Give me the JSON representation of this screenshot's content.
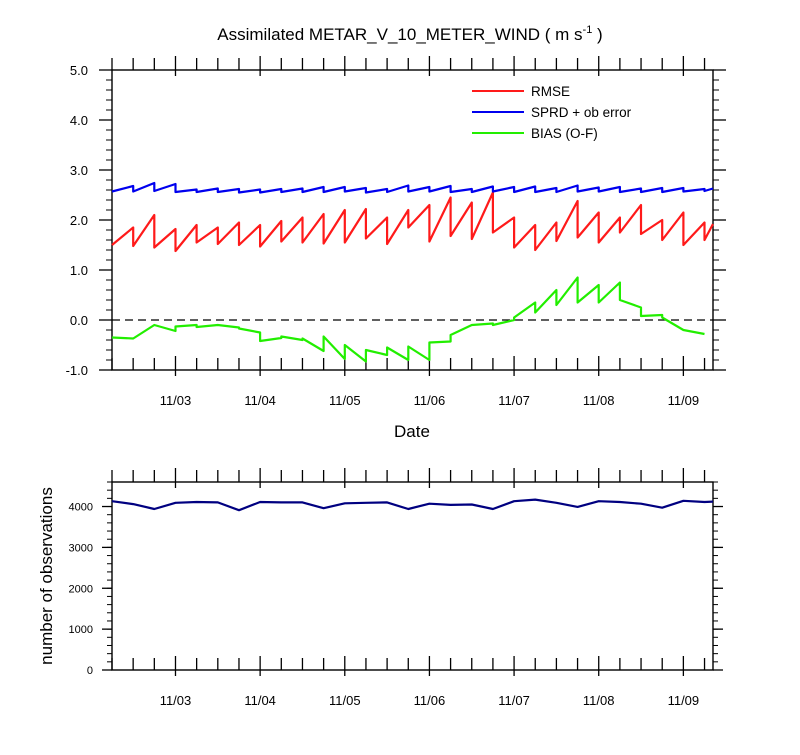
{
  "title_main": "Assimilated METAR_V_10_METER_WIND ( m s",
  "title_sup": "-1",
  "title_end": " )",
  "colors": {
    "rmse": "#ff1a1a",
    "sprd": "#0000ee",
    "bias": "#22ee00",
    "obs": "#000080"
  },
  "chart_data": [
    {
      "type": "line",
      "xlabel": "Date",
      "ylabel": "",
      "ylim": [
        -1,
        5
      ],
      "xlim": [
        2.25,
        9.35
      ],
      "x_ticks": [
        "11/03",
        "11/04",
        "11/05",
        "11/06",
        "11/07",
        "11/08",
        "11/09"
      ],
      "y_ticks": [
        "-1.0",
        "0.0",
        "1.0",
        "2.0",
        "3.0",
        "4.0",
        "5.0"
      ],
      "reference_line": 0,
      "legend_position": "top-right",
      "series": [
        {
          "name": "RMSE",
          "points": [
            [
              2.25,
              1.5
            ],
            [
              2.5,
              1.85
            ],
            [
              2.5,
              1.48
            ],
            [
              2.75,
              2.1
            ],
            [
              2.75,
              1.45
            ],
            [
              3.0,
              1.82
            ],
            [
              3.0,
              1.38
            ],
            [
              3.25,
              1.9
            ],
            [
              3.25,
              1.55
            ],
            [
              3.5,
              1.85
            ],
            [
              3.5,
              1.52
            ],
            [
              3.75,
              1.95
            ],
            [
              3.75,
              1.5
            ],
            [
              4.0,
              1.9
            ],
            [
              4.0,
              1.47
            ],
            [
              4.25,
              1.98
            ],
            [
              4.25,
              1.57
            ],
            [
              4.5,
              2.05
            ],
            [
              4.5,
              1.55
            ],
            [
              4.75,
              2.12
            ],
            [
              4.75,
              1.53
            ],
            [
              5.0,
              2.2
            ],
            [
              5.0,
              1.55
            ],
            [
              5.25,
              2.22
            ],
            [
              5.25,
              1.63
            ],
            [
              5.5,
              2.05
            ],
            [
              5.5,
              1.52
            ],
            [
              5.75,
              2.2
            ],
            [
              5.75,
              1.85
            ],
            [
              6.0,
              2.3
            ],
            [
              6.0,
              1.57
            ],
            [
              6.25,
              2.45
            ],
            [
              6.25,
              1.68
            ],
            [
              6.5,
              2.35
            ],
            [
              6.5,
              1.62
            ],
            [
              6.75,
              2.55
            ],
            [
              6.75,
              1.75
            ],
            [
              7.0,
              2.05
            ],
            [
              7.0,
              1.45
            ],
            [
              7.25,
              1.9
            ],
            [
              7.25,
              1.4
            ],
            [
              7.5,
              1.95
            ],
            [
              7.5,
              1.58
            ],
            [
              7.75,
              2.38
            ],
            [
              7.75,
              1.65
            ],
            [
              8.0,
              2.15
            ],
            [
              8.0,
              1.55
            ],
            [
              8.25,
              2.05
            ],
            [
              8.25,
              1.75
            ],
            [
              8.5,
              2.3
            ],
            [
              8.5,
              1.72
            ],
            [
              8.75,
              2.0
            ],
            [
              8.75,
              1.6
            ],
            [
              9.0,
              2.15
            ],
            [
              9.0,
              1.5
            ],
            [
              9.25,
              1.95
            ],
            [
              9.25,
              1.6
            ],
            [
              9.35,
              1.92
            ]
          ]
        },
        {
          "name": "SPRD + ob error",
          "points": [
            [
              2.25,
              2.57
            ],
            [
              2.5,
              2.68
            ],
            [
              2.5,
              2.57
            ],
            [
              2.75,
              2.74
            ],
            [
              2.75,
              2.58
            ],
            [
              3.0,
              2.72
            ],
            [
              3.0,
              2.56
            ],
            [
              3.25,
              2.61
            ],
            [
              3.25,
              2.56
            ],
            [
              3.5,
              2.63
            ],
            [
              3.5,
              2.56
            ],
            [
              3.75,
              2.62
            ],
            [
              3.75,
              2.55
            ],
            [
              4.0,
              2.61
            ],
            [
              4.0,
              2.55
            ],
            [
              4.25,
              2.62
            ],
            [
              4.25,
              2.56
            ],
            [
              4.5,
              2.63
            ],
            [
              4.5,
              2.56
            ],
            [
              4.75,
              2.66
            ],
            [
              4.75,
              2.56
            ],
            [
              5.0,
              2.66
            ],
            [
              5.0,
              2.57
            ],
            [
              5.25,
              2.64
            ],
            [
              5.25,
              2.55
            ],
            [
              5.5,
              2.62
            ],
            [
              5.5,
              2.56
            ],
            [
              5.75,
              2.69
            ],
            [
              5.75,
              2.57
            ],
            [
              6.0,
              2.66
            ],
            [
              6.0,
              2.57
            ],
            [
              6.25,
              2.68
            ],
            [
              6.25,
              2.56
            ],
            [
              6.5,
              2.62
            ],
            [
              6.5,
              2.56
            ],
            [
              6.75,
              2.67
            ],
            [
              6.75,
              2.57
            ],
            [
              7.0,
              2.66
            ],
            [
              7.0,
              2.56
            ],
            [
              7.25,
              2.67
            ],
            [
              7.25,
              2.56
            ],
            [
              7.5,
              2.64
            ],
            [
              7.5,
              2.56
            ],
            [
              7.75,
              2.69
            ],
            [
              7.75,
              2.57
            ],
            [
              8.0,
              2.65
            ],
            [
              8.0,
              2.57
            ],
            [
              8.25,
              2.66
            ],
            [
              8.25,
              2.56
            ],
            [
              8.5,
              2.63
            ],
            [
              8.5,
              2.56
            ],
            [
              8.75,
              2.64
            ],
            [
              8.75,
              2.56
            ],
            [
              9.0,
              2.64
            ],
            [
              9.0,
              2.57
            ],
            [
              9.25,
              2.62
            ],
            [
              9.25,
              2.58
            ],
            [
              9.35,
              2.63
            ]
          ]
        },
        {
          "name": "BIAS (O-F)",
          "points": [
            [
              2.25,
              -0.35
            ],
            [
              2.5,
              -0.37
            ],
            [
              2.75,
              -0.1
            ],
            [
              3.0,
              -0.22
            ],
            [
              3.0,
              -0.13
            ],
            [
              3.25,
              -0.1
            ],
            [
              3.25,
              -0.14
            ],
            [
              3.5,
              -0.1
            ],
            [
              3.75,
              -0.15
            ],
            [
              3.75,
              -0.17
            ],
            [
              4.0,
              -0.25
            ],
            [
              4.0,
              -0.42
            ],
            [
              4.25,
              -0.36
            ],
            [
              4.25,
              -0.33
            ],
            [
              4.5,
              -0.4
            ],
            [
              4.5,
              -0.37
            ],
            [
              4.75,
              -0.62
            ],
            [
              4.75,
              -0.33
            ],
            [
              5.0,
              -0.78
            ],
            [
              5.0,
              -0.5
            ],
            [
              5.25,
              -0.83
            ],
            [
              5.25,
              -0.6
            ],
            [
              5.5,
              -0.7
            ],
            [
              5.5,
              -0.55
            ],
            [
              5.75,
              -0.8
            ],
            [
              5.75,
              -0.53
            ],
            [
              6.0,
              -0.8
            ],
            [
              6.0,
              -0.45
            ],
            [
              6.25,
              -0.43
            ],
            [
              6.25,
              -0.3
            ],
            [
              6.5,
              -0.1
            ],
            [
              6.75,
              -0.07
            ],
            [
              6.75,
              -0.1
            ],
            [
              7.0,
              0.0
            ],
            [
              7.0,
              0.05
            ],
            [
              7.25,
              0.35
            ],
            [
              7.25,
              0.15
            ],
            [
              7.5,
              0.6
            ],
            [
              7.5,
              0.3
            ],
            [
              7.75,
              0.85
            ],
            [
              7.75,
              0.35
            ],
            [
              8.0,
              0.7
            ],
            [
              8.0,
              0.35
            ],
            [
              8.25,
              0.75
            ],
            [
              8.25,
              0.4
            ],
            [
              8.5,
              0.25
            ],
            [
              8.5,
              0.08
            ],
            [
              8.75,
              0.1
            ],
            [
              8.75,
              0.05
            ],
            [
              9.0,
              -0.2
            ],
            [
              9.25,
              -0.28
            ]
          ]
        }
      ]
    },
    {
      "type": "line",
      "xlabel": "",
      "ylabel": "number of observations",
      "ylim": [
        0,
        4600
      ],
      "xlim": [
        2.25,
        9.35
      ],
      "x_ticks": [
        "11/03",
        "11/04",
        "11/05",
        "11/06",
        "11/07",
        "11/08",
        "11/09"
      ],
      "y_ticks": [
        "0",
        "1000",
        "2000",
        "3000",
        "4000"
      ],
      "series": [
        {
          "points": [
            [
              2.25,
              4130
            ],
            [
              2.5,
              4060
            ],
            [
              2.75,
              3940
            ],
            [
              3.0,
              4090
            ],
            [
              3.25,
              4110
            ],
            [
              3.5,
              4100
            ],
            [
              3.75,
              3910
            ],
            [
              4.0,
              4110
            ],
            [
              4.25,
              4100
            ],
            [
              4.5,
              4100
            ],
            [
              4.75,
              3960
            ],
            [
              5.0,
              4080
            ],
            [
              5.25,
              4090
            ],
            [
              5.5,
              4100
            ],
            [
              5.75,
              3940
            ],
            [
              6.0,
              4070
            ],
            [
              6.25,
              4040
            ],
            [
              6.5,
              4050
            ],
            [
              6.75,
              3940
            ],
            [
              7.0,
              4130
            ],
            [
              7.25,
              4170
            ],
            [
              7.5,
              4090
            ],
            [
              7.75,
              3990
            ],
            [
              8.0,
              4130
            ],
            [
              8.25,
              4110
            ],
            [
              8.5,
              4070
            ],
            [
              8.75,
              3970
            ],
            [
              9.0,
              4140
            ],
            [
              9.25,
              4110
            ],
            [
              9.35,
              4120
            ]
          ]
        }
      ]
    }
  ]
}
